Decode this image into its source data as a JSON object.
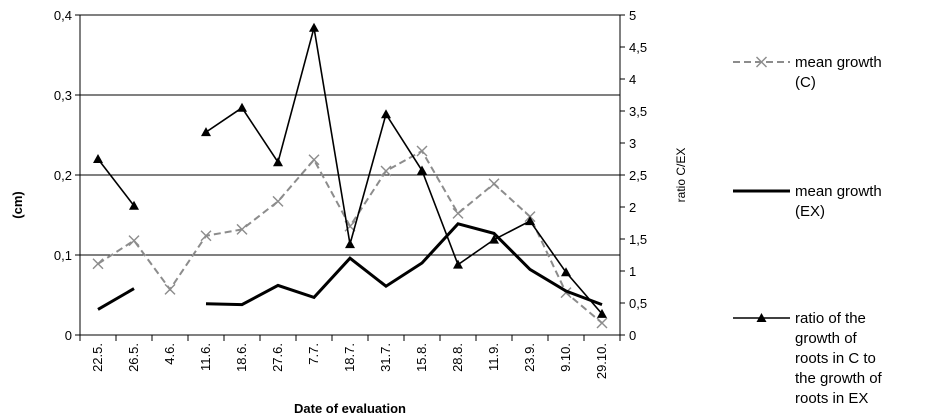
{
  "chart_data": {
    "type": "line",
    "title": "",
    "xlabel": "Date of evaluation",
    "ylabel": "(cm)",
    "y2label": "ratio C/EX",
    "categories": [
      "22.5.",
      "26.5.",
      "4.6.",
      "11.6.",
      "18.6.",
      "27.6.",
      "7.7.",
      "18.7.",
      "31.7.",
      "15.8.",
      "28.8.",
      "11.9.",
      "23.9.",
      "9.10.",
      "29.10."
    ],
    "ylim": [
      0,
      0.4
    ],
    "yticks": [
      "0",
      "0,1",
      "0,2",
      "0,3",
      "0,4"
    ],
    "y2lim": [
      0,
      5
    ],
    "y2ticks": [
      "0",
      "0,5",
      "1",
      "1,5",
      "2",
      "2,5",
      "3",
      "3,5",
      "4",
      "4,5",
      "5"
    ],
    "grid": "horizontal major gridlines",
    "legend_position": "right",
    "series": [
      {
        "name": "mean growth (C)",
        "axis": "left",
        "style": "dashed",
        "marker": "x",
        "color": "#8c8c8c",
        "values": [
          0.089,
          0.118,
          0.057,
          0.124,
          0.132,
          0.167,
          0.219,
          0.136,
          0.205,
          0.23,
          0.152,
          0.189,
          0.148,
          0.053,
          0.015
        ]
      },
      {
        "name": "mean growth (EX)",
        "axis": "left",
        "style": "solid-thick",
        "marker": "none",
        "color": "#000000",
        "segments": [
          {
            "x": [
              "22.5.",
              "26.5."
            ],
            "values": [
              0.032,
              0.058
            ]
          },
          {
            "x": [
              "11.6.",
              "18.6.",
              "27.6.",
              "7.7.",
              "18.7.",
              "31.7.",
              "15.8.",
              "28.8.",
              "11.9.",
              "23.9.",
              "9.10.",
              "29.10."
            ],
            "values": [
              0.039,
              0.038,
              0.062,
              0.047,
              0.096,
              0.061,
              0.09,
              0.139,
              0.127,
              0.082,
              0.055,
              0.038
            ]
          }
        ]
      },
      {
        "name": "ratio of the growth of roots in C to the growth of roots in EX",
        "axis": "right",
        "style": "solid-thin",
        "marker": "triangle",
        "color": "#000000",
        "segments": [
          {
            "x": [
              "22.5.",
              "26.5."
            ],
            "values": [
              2.75,
              2.02
            ]
          },
          {
            "x": [
              "11.6.",
              "18.6.",
              "27.6.",
              "7.7.",
              "18.7.",
              "31.7.",
              "15.8.",
              "28.8.",
              "11.9.",
              "23.9.",
              "9.10.",
              "29.10."
            ],
            "values": [
              3.17,
              3.55,
              2.7,
              4.8,
              1.42,
              3.45,
              2.57,
              1.1,
              1.49,
              1.78,
              0.98,
              0.33
            ]
          }
        ]
      }
    ],
    "legend": [
      {
        "key": "c",
        "lines": [
          "mean growth",
          "(C)"
        ]
      },
      {
        "key": "ex",
        "lines": [
          "mean growth",
          "(EX)"
        ]
      },
      {
        "key": "ratio",
        "lines": [
          "ratio of the",
          "growth of",
          "roots in C to",
          "the growth of",
          "roots in EX"
        ]
      }
    ]
  }
}
